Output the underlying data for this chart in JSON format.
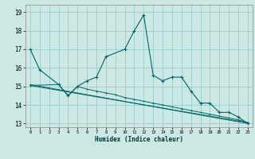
{
  "xlabel": "Humidex (Indice chaleur)",
  "background_color": "#cce8e4",
  "grid_color": "#99cccc",
  "line_color": "#006666",
  "xlim": [
    -0.5,
    23.5
  ],
  "ylim": [
    12.8,
    19.4
  ],
  "xticks": [
    0,
    1,
    2,
    3,
    4,
    5,
    6,
    7,
    8,
    9,
    10,
    11,
    12,
    13,
    14,
    15,
    16,
    17,
    18,
    19,
    20,
    21,
    22,
    23
  ],
  "yticks": [
    13,
    14,
    15,
    16,
    17,
    18,
    19
  ],
  "series_main": {
    "x": [
      0,
      1,
      3,
      4,
      5,
      6,
      7,
      8,
      10,
      11,
      12,
      13,
      14,
      15,
      16,
      17,
      18,
      19,
      20,
      21,
      22,
      23
    ],
    "y": [
      17.0,
      15.9,
      15.1,
      14.5,
      15.0,
      15.3,
      15.5,
      16.6,
      17.0,
      18.0,
      18.85,
      15.6,
      15.3,
      15.5,
      15.5,
      14.75,
      14.1,
      14.1,
      13.6,
      13.6,
      13.35,
      13.0
    ]
  },
  "series_lower1": {
    "x": [
      0,
      3,
      4,
      5,
      6,
      7,
      8,
      9,
      10,
      11,
      12,
      13,
      14,
      15,
      16,
      17,
      18,
      19,
      20,
      21,
      22,
      23
    ],
    "y": [
      15.05,
      15.1,
      14.5,
      15.0,
      14.85,
      14.75,
      14.65,
      14.55,
      14.4,
      14.3,
      14.2,
      14.1,
      14.0,
      13.9,
      13.8,
      13.7,
      13.6,
      13.5,
      13.4,
      13.3,
      13.2,
      13.05
    ]
  },
  "series_straight1": {
    "x": [
      0,
      23
    ],
    "y": [
      15.1,
      13.0
    ]
  },
  "series_straight2": {
    "x": [
      0,
      23
    ],
    "y": [
      15.05,
      13.05
    ]
  }
}
